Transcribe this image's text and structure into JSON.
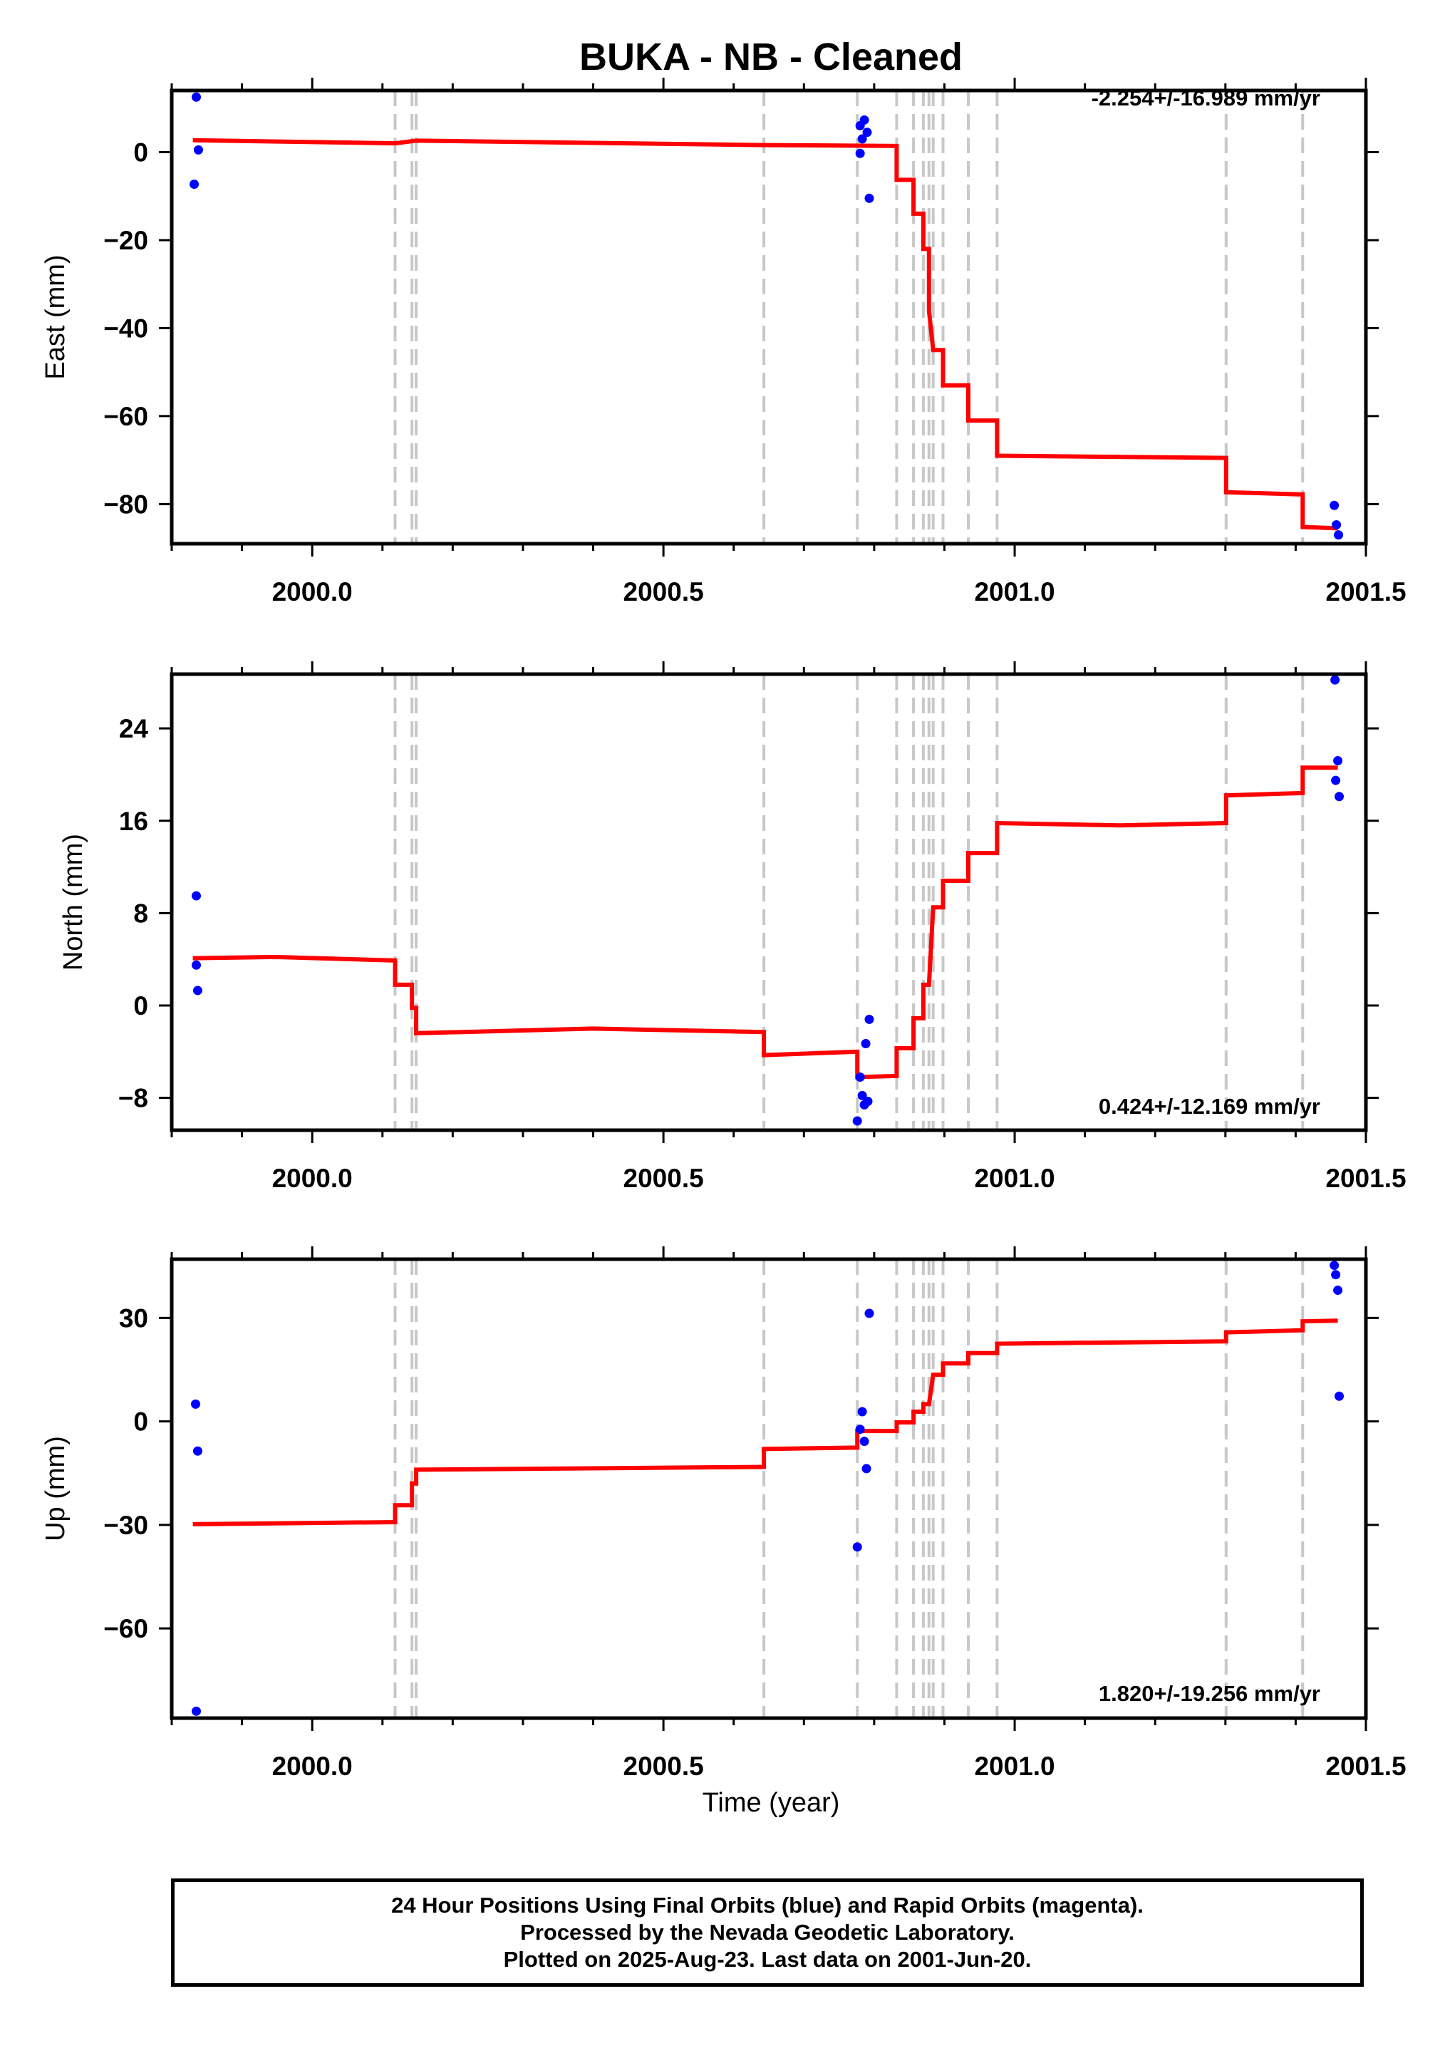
{
  "title": "BUKA  - NB - Cleaned",
  "xlabel": "Time (year)",
  "colors": {
    "fit": "#ff0000",
    "points": "#0000ff",
    "events": "#c8c8c8",
    "frame": "#000000"
  },
  "footer": {
    "line1": "24 Hour Positions Using Final Orbits (blue) and Rapid Orbits (magenta).",
    "line2": "Processed by the Nevada Geodetic Laboratory.",
    "line3": "Plotted on 2025-Aug-23. Last data on 2001-Jun-20."
  },
  "chart_data": [
    {
      "type": "scatter",
      "ylabel": "East (mm)",
      "rate_label": "-2.254+/-16.989 mm/yr",
      "xlim": [
        1999.8,
        2001.5
      ],
      "ylim": [
        -89,
        14
      ],
      "xticks": [
        2000.0,
        2000.5,
        2001.0,
        2001.5
      ],
      "xtick_labels": [
        "2000.0",
        "2000.5",
        "2001.0",
        "2001.5"
      ],
      "yticks": [
        0,
        -20,
        -40,
        -60,
        -80
      ],
      "ytick_labels": [
        "0",
        "−20",
        "−40",
        "−60",
        "−80"
      ],
      "event_lines": [
        2000.118,
        2000.142,
        2000.148,
        2000.643,
        2000.776,
        2000.832,
        2000.856,
        2000.87,
        2000.878,
        2000.884,
        2000.898,
        2000.934,
        2000.975,
        2001.301,
        2001.41
      ],
      "points": [
        [
          1999.835,
          12.5
        ],
        [
          1999.838,
          0.5
        ],
        [
          1999.832,
          -7.3
        ],
        [
          2000.78,
          6
        ],
        [
          2000.786,
          7.3
        ],
        [
          2000.783,
          3
        ],
        [
          2000.79,
          4.5
        ],
        [
          2000.78,
          -0.3
        ],
        [
          2000.793,
          -10.5
        ],
        [
          2001.455,
          -80.3
        ],
        [
          2001.458,
          -84.7
        ],
        [
          2001.461,
          -87
        ]
      ],
      "fit": [
        [
          1999.83,
          2.7
        ],
        [
          2000.118,
          2
        ],
        [
          2000.148,
          2.6
        ],
        [
          2000.643,
          1.6
        ],
        [
          2000.832,
          1.4
        ],
        [
          2000.832,
          -6.3
        ],
        [
          2000.856,
          -6.3
        ],
        [
          2000.856,
          -14
        ],
        [
          2000.87,
          -14
        ],
        [
          2000.87,
          -22
        ],
        [
          2000.878,
          -22
        ],
        [
          2000.878,
          -36
        ],
        [
          2000.884,
          -45
        ],
        [
          2000.898,
          -45
        ],
        [
          2000.898,
          -53
        ],
        [
          2000.934,
          -53
        ],
        [
          2000.934,
          -61
        ],
        [
          2000.975,
          -61
        ],
        [
          2000.975,
          -69
        ],
        [
          2001.301,
          -69.5
        ],
        [
          2001.301,
          -77.3
        ],
        [
          2001.41,
          -77.8
        ],
        [
          2001.41,
          -85.2
        ],
        [
          2001.46,
          -85.5
        ]
      ]
    },
    {
      "type": "scatter",
      "ylabel": "North (mm)",
      "rate_label": "0.424+/-12.169 mm/yr",
      "xlim": [
        1999.8,
        2001.5
      ],
      "ylim": [
        -10.8,
        28.7
      ],
      "xticks": [
        2000.0,
        2000.5,
        2001.0,
        2001.5
      ],
      "xtick_labels": [
        "2000.0",
        "2000.5",
        "2001.0",
        "2001.5"
      ],
      "yticks": [
        24,
        16,
        8,
        0,
        -8
      ],
      "ytick_labels": [
        "24",
        "16",
        "8",
        "0",
        "−8"
      ],
      "event_lines": [
        2000.118,
        2000.142,
        2000.148,
        2000.643,
        2000.776,
        2000.832,
        2000.856,
        2000.87,
        2000.878,
        2000.884,
        2000.898,
        2000.934,
        2000.975,
        2001.301,
        2001.41
      ],
      "points": [
        [
          1999.835,
          9.5
        ],
        [
          1999.835,
          3.5
        ],
        [
          1999.837,
          1.3
        ],
        [
          2000.776,
          -10
        ],
        [
          2000.78,
          -6.2
        ],
        [
          2000.783,
          -7.8
        ],
        [
          2000.786,
          -8.6
        ],
        [
          2000.788,
          -3.3
        ],
        [
          2000.791,
          -8.3
        ],
        [
          2000.793,
          -1.2
        ],
        [
          2001.456,
          28.2
        ],
        [
          2001.46,
          21.2
        ],
        [
          2001.457,
          19.5
        ],
        [
          2001.462,
          18.1
        ]
      ],
      "fit": [
        [
          1999.83,
          4.1
        ],
        [
          1999.95,
          4.2
        ],
        [
          2000.118,
          3.9
        ],
        [
          2000.118,
          1.8
        ],
        [
          2000.142,
          1.8
        ],
        [
          2000.142,
          -0.2
        ],
        [
          2000.148,
          -0.2
        ],
        [
          2000.148,
          -2.4
        ],
        [
          2000.4,
          -2
        ],
        [
          2000.643,
          -2.3
        ],
        [
          2000.643,
          -4.3
        ],
        [
          2000.776,
          -4
        ],
        [
          2000.776,
          -6.2
        ],
        [
          2000.832,
          -6.1
        ],
        [
          2000.832,
          -3.7
        ],
        [
          2000.856,
          -3.7
        ],
        [
          2000.856,
          -1.1
        ],
        [
          2000.87,
          -1.1
        ],
        [
          2000.87,
          1.8
        ],
        [
          2000.878,
          1.8
        ],
        [
          2000.884,
          8.5
        ],
        [
          2000.898,
          8.5
        ],
        [
          2000.898,
          10.8
        ],
        [
          2000.934,
          10.8
        ],
        [
          2000.934,
          13.2
        ],
        [
          2000.975,
          13.2
        ],
        [
          2000.975,
          15.8
        ],
        [
          2001.15,
          15.6
        ],
        [
          2001.301,
          15.8
        ],
        [
          2001.301,
          18.2
        ],
        [
          2001.41,
          18.4
        ],
        [
          2001.41,
          20.6
        ],
        [
          2001.46,
          20.6
        ]
      ]
    },
    {
      "type": "scatter",
      "ylabel": "Up (mm)",
      "rate_label": "1.820+/-19.256 mm/yr",
      "xlim": [
        1999.8,
        2001.5
      ],
      "ylim": [
        -86,
        47
      ],
      "xticks": [
        2000.0,
        2000.5,
        2001.0,
        2001.5
      ],
      "xtick_labels": [
        "2000.0",
        "2000.5",
        "2001.0",
        "2001.5"
      ],
      "yticks": [
        30,
        0,
        -30,
        -60
      ],
      "ytick_labels": [
        "30",
        "0",
        "−30",
        "−60"
      ],
      "event_lines": [
        2000.118,
        2000.142,
        2000.148,
        2000.643,
        2000.776,
        2000.832,
        2000.856,
        2000.87,
        2000.878,
        2000.884,
        2000.898,
        2000.934,
        2000.975,
        2001.301,
        2001.41
      ],
      "points": [
        [
          1999.834,
          5
        ],
        [
          1999.837,
          -8.6
        ],
        [
          1999.835,
          -84
        ],
        [
          2000.776,
          -36.4
        ],
        [
          2000.78,
          -2.3
        ],
        [
          2000.783,
          2.8
        ],
        [
          2000.786,
          -5.8
        ],
        [
          2000.789,
          -13.7
        ],
        [
          2000.793,
          31.3
        ],
        [
          2001.455,
          45.2
        ],
        [
          2001.457,
          42.5
        ],
        [
          2001.46,
          38
        ],
        [
          2001.462,
          7.3
        ]
      ],
      "fit": [
        [
          1999.83,
          -29.8
        ],
        [
          2000.118,
          -29.2
        ],
        [
          2000.118,
          -24.3
        ],
        [
          2000.142,
          -24.3
        ],
        [
          2000.142,
          -18
        ],
        [
          2000.148,
          -18
        ],
        [
          2000.148,
          -14
        ],
        [
          2000.643,
          -13.2
        ],
        [
          2000.643,
          -8
        ],
        [
          2000.776,
          -7.6
        ],
        [
          2000.776,
          -2.8
        ],
        [
          2000.832,
          -2.8
        ],
        [
          2000.832,
          -0.3
        ],
        [
          2000.856,
          -0.3
        ],
        [
          2000.856,
          2.8
        ],
        [
          2000.87,
          2.8
        ],
        [
          2000.87,
          5
        ],
        [
          2000.878,
          5
        ],
        [
          2000.884,
          13.5
        ],
        [
          2000.898,
          13.5
        ],
        [
          2000.898,
          16.8
        ],
        [
          2000.934,
          16.8
        ],
        [
          2000.934,
          19.8
        ],
        [
          2000.975,
          19.8
        ],
        [
          2000.975,
          22.5
        ],
        [
          2001.301,
          23.2
        ],
        [
          2001.301,
          25.8
        ],
        [
          2001.41,
          26.4
        ],
        [
          2001.41,
          29
        ],
        [
          2001.46,
          29.2
        ]
      ]
    }
  ]
}
